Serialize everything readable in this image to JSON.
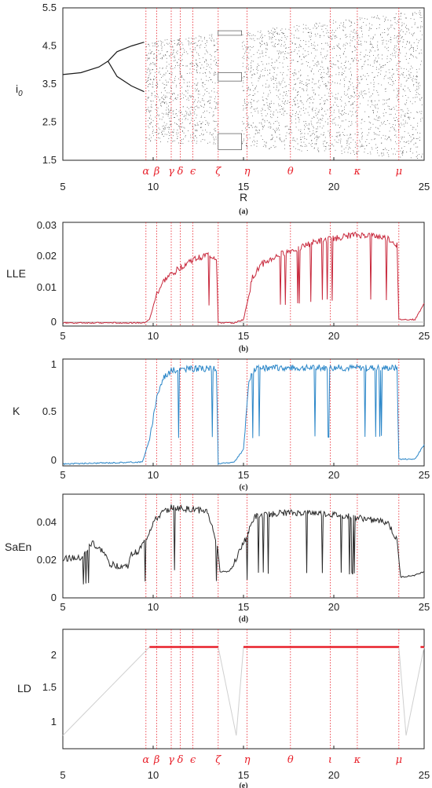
{
  "chart_data": [
    {
      "type": "scatter",
      "panel": "a",
      "caption": "(a)",
      "xlabel": "R",
      "ylabel": "i",
      "ylabel_sub": "0",
      "xlim": [
        5,
        25
      ],
      "ylim": [
        1.5,
        5.5
      ],
      "xticks": [
        "5",
        "10",
        "15",
        "20",
        "25"
      ],
      "yticks": [
        "1.5",
        "2.5",
        "3.5",
        "4.5",
        "5.5"
      ],
      "marker_color": "#1a1a1a",
      "description": "bifurcation diagram",
      "branches": [
        {
          "x": [
            5,
            6,
            7,
            7.5
          ],
          "y": [
            3.75,
            3.8,
            3.95,
            4.1
          ]
        },
        {
          "x": [
            7.5,
            8,
            8.8,
            9.5
          ],
          "y": [
            4.1,
            4.35,
            4.5,
            4.6
          ]
        },
        {
          "x": [
            7.5,
            8,
            8.8,
            9.5
          ],
          "y": [
            4.1,
            3.7,
            3.45,
            3.3
          ]
        }
      ]
    },
    {
      "type": "line",
      "panel": "b",
      "caption": "(b)",
      "ylabel": "LLE",
      "xlim": [
        5,
        25
      ],
      "ylim": [
        -0.001,
        0.031
      ],
      "xticks": [
        "5",
        "10",
        "15",
        "20",
        "25"
      ],
      "yticks": [
        "0",
        "0.01",
        "0.02",
        "0.03"
      ],
      "color": "#c8283c",
      "x": [
        5,
        9.5,
        9.8,
        10.2,
        10.6,
        11.0,
        11.5,
        12.0,
        12.5,
        13.0,
        13.5,
        13.6,
        14.5,
        15.0,
        15.2,
        15.5,
        16.0,
        17.0,
        18.0,
        19.0,
        20.0,
        21.0,
        22.0,
        23.0,
        23.5,
        23.6,
        24.5,
        25
      ],
      "values": [
        0.0,
        0.0,
        0.001,
        0.009,
        0.013,
        0.015,
        0.017,
        0.019,
        0.02,
        0.021,
        0.02,
        0.0,
        0.0,
        0.001,
        0.006,
        0.014,
        0.018,
        0.021,
        0.023,
        0.025,
        0.026,
        0.027,
        0.027,
        0.026,
        0.024,
        0.001,
        0.001,
        0.006
      ]
    },
    {
      "type": "line",
      "panel": "c",
      "caption": "(c)",
      "ylabel": "K",
      "xlim": [
        5,
        25
      ],
      "ylim": [
        -0.02,
        1.08
      ],
      "xticks": [
        "5",
        "10",
        "15",
        "20",
        "25"
      ],
      "yticks": [
        "0",
        "0.5",
        "1"
      ],
      "color": "#2a86c8",
      "x": [
        5,
        9.4,
        9.8,
        10.2,
        10.6,
        11.0,
        12.0,
        13.5,
        13.6,
        14.5,
        15.0,
        15.3,
        15.6,
        17.0,
        20.0,
        23.0,
        23.5,
        23.6,
        24.5,
        25
      ],
      "values": [
        0.0,
        0.02,
        0.25,
        0.7,
        0.9,
        0.96,
        0.98,
        0.98,
        0.0,
        0.02,
        0.15,
        0.85,
        0.98,
        0.99,
        0.99,
        0.99,
        0.99,
        0.05,
        0.05,
        0.2
      ]
    },
    {
      "type": "line",
      "panel": "d",
      "caption": "(d)",
      "ylabel": "SaEn",
      "xlim": [
        5,
        25
      ],
      "ylim": [
        0,
        0.055
      ],
      "xticks": [
        "5",
        "10",
        "15",
        "20",
        "25"
      ],
      "yticks": [
        "0",
        "0.02",
        "0.04"
      ],
      "color": "#2a2a2a",
      "x": [
        5,
        6.0,
        6.7,
        6.8,
        7.2,
        7.6,
        8.0,
        8.6,
        8.8,
        9.2,
        9.6,
        10.0,
        10.5,
        11.0,
        12.0,
        13.0,
        13.5,
        13.7,
        14.2,
        14.8,
        15.2,
        15.6,
        17.0,
        19.0,
        21.0,
        23.0,
        23.5,
        23.7,
        24.5,
        25
      ],
      "values": [
        0.021,
        0.021,
        0.03,
        0.027,
        0.025,
        0.018,
        0.017,
        0.017,
        0.023,
        0.025,
        0.031,
        0.04,
        0.045,
        0.048,
        0.047,
        0.046,
        0.03,
        0.014,
        0.014,
        0.025,
        0.033,
        0.043,
        0.045,
        0.045,
        0.043,
        0.04,
        0.03,
        0.011,
        0.012,
        0.014
      ]
    },
    {
      "type": "line",
      "panel": "e",
      "caption": "(e)",
      "ylabel": "LD",
      "xlim": [
        5,
        25
      ],
      "ylim": [
        0.85,
        2.2
      ],
      "xticks": [
        "5",
        "10",
        "15",
        "20",
        "25"
      ],
      "yticks": [
        "1",
        "1.5",
        "2"
      ],
      "color": "#e8202a",
      "background_color": "#cfcfcf",
      "x": [
        5,
        9.8,
        13.6,
        14.6,
        15.0,
        23.6,
        24.0,
        25
      ],
      "values": [
        1.0,
        2.0,
        2.0,
        1.0,
        2.0,
        2.0,
        1.0,
        2.0
      ],
      "segments": [
        [
          9.8,
          13.6
        ],
        [
          15.0,
          23.6
        ],
        [
          24.8,
          25
        ]
      ]
    }
  ],
  "markers": {
    "color": "#e8202a",
    "labels": [
      "α",
      "β",
      "γ",
      "δ",
      "ϵ",
      "ζ",
      "η",
      "θ",
      "ι",
      "κ",
      "μ"
    ],
    "r": [
      9.6,
      10.2,
      11.0,
      11.5,
      12.2,
      13.6,
      15.2,
      17.6,
      19.8,
      21.3,
      23.6
    ]
  }
}
